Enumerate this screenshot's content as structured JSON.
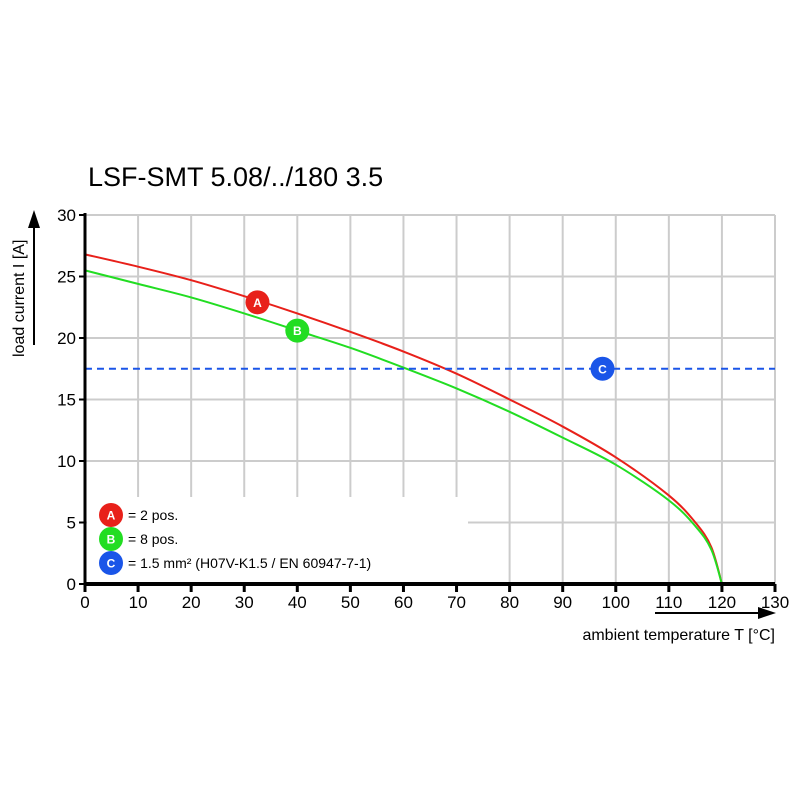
{
  "chart_data": {
    "type": "line",
    "title": "LSF-SMT 5.08/../180 3.5",
    "xlabel": "ambient temperature T [°C]",
    "ylabel": "load current I [A]",
    "xlim": [
      0,
      130
    ],
    "ylim": [
      0,
      30
    ],
    "xticks": [
      0,
      10,
      20,
      30,
      40,
      50,
      60,
      70,
      80,
      90,
      100,
      110,
      120,
      130
    ],
    "yticks": [
      0,
      5,
      10,
      15,
      20,
      25,
      30
    ],
    "grid": true,
    "legend_placement": "bottom-left",
    "series": [
      {
        "marker": "A",
        "color": "#e8201a",
        "x": [
          0,
          10,
          20,
          30,
          40,
          50,
          60,
          70,
          80,
          90,
          100,
          110,
          115,
          118,
          120
        ],
        "y": [
          26.8,
          25.8,
          24.7,
          23.4,
          22.0,
          20.5,
          18.9,
          17.1,
          15.0,
          12.8,
          10.3,
          7.2,
          5.0,
          3.0,
          0
        ],
        "marker_at": [
          32.5,
          22.9
        ]
      },
      {
        "marker": "B",
        "color": "#22dd22",
        "x": [
          0,
          10,
          20,
          30,
          40,
          50,
          60,
          70,
          80,
          90,
          100,
          110,
          115,
          118,
          120
        ],
        "y": [
          25.5,
          24.4,
          23.3,
          22.0,
          20.6,
          19.2,
          17.6,
          15.9,
          14.0,
          11.9,
          9.7,
          6.8,
          4.7,
          2.8,
          0
        ],
        "marker_at": [
          40,
          20.6
        ]
      },
      {
        "marker": "C",
        "color": "#1a55e8",
        "dashed": true,
        "x": [
          0,
          130
        ],
        "y": [
          17.5,
          17.5
        ],
        "marker_at": [
          97.5,
          17.5
        ]
      }
    ],
    "legend": [
      {
        "marker": "A",
        "text": "= 2 pos."
      },
      {
        "marker": "B",
        "text": "= 8 pos."
      },
      {
        "marker": "C",
        "text": "= 1.5 mm² (H07V-K1.5 / EN 60947-7-1)"
      }
    ]
  }
}
